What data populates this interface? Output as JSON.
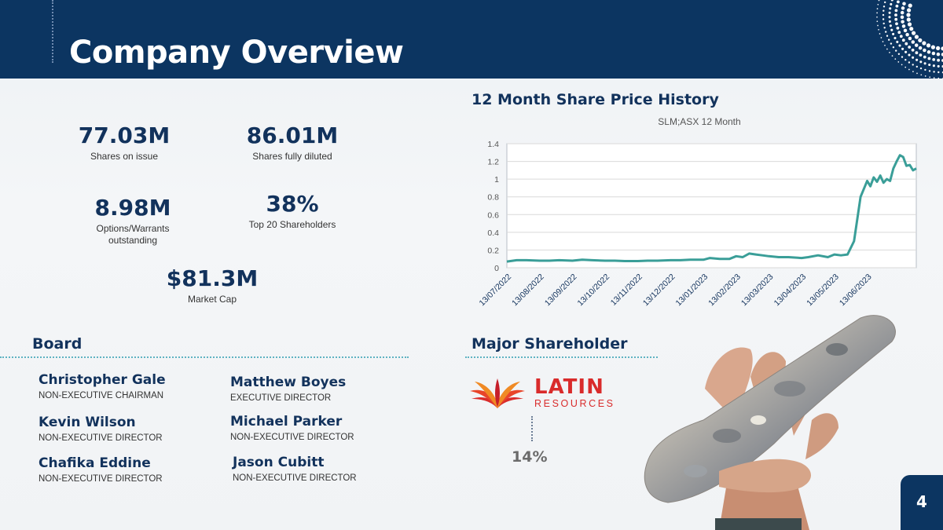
{
  "header": {
    "title": "Company Overview"
  },
  "stats": {
    "shares_on_issue": {
      "value": "77.03M",
      "label": "Shares on issue"
    },
    "shares_fully_diluted": {
      "value": "86.01M",
      "label": "Shares fully diluted"
    },
    "options": {
      "value": "8.98M",
      "label_line1": "Options/Warrants",
      "label_line2": "outstanding"
    },
    "top20": {
      "value": "38%",
      "label": "Top 20 Shareholders"
    },
    "market_cap": {
      "value": "$81.3M",
      "label": "Market Cap"
    }
  },
  "chart_section": {
    "title": "12 Month Share Price History"
  },
  "chart_data": {
    "type": "line",
    "title": "SLM;ASX 12 Month",
    "xlabel": "",
    "ylabel": "",
    "ylim": [
      0,
      1.4
    ],
    "yticks": [
      "0",
      "0.2",
      "0.4",
      "0.6",
      "0.8",
      "1",
      "1.2",
      "1.4"
    ],
    "xtick_labels": [
      "13/07/2022",
      "13/08/2022",
      "13/09/2022",
      "13/10/2022",
      "13/11/2022",
      "13/12/2022",
      "13/01/2023",
      "13/02/2023",
      "13/03/2023",
      "13/04/2023",
      "13/05/2023",
      "13/06/2023"
    ],
    "grid": true,
    "line_color": "#3a9e98",
    "series": [
      {
        "x": [
          0,
          0.3,
          0.6,
          1,
          1.3,
          1.6,
          2,
          2.3,
          2.6,
          3,
          3.3,
          3.6,
          4,
          4.3,
          4.6,
          5,
          5.3,
          5.6,
          6,
          6.2,
          6.5,
          6.8,
          7,
          7.2,
          7.4,
          7.6,
          7.8,
          8,
          8.3,
          8.6,
          9,
          9.2,
          9.5,
          9.8,
          10,
          10.2,
          10.4,
          10.6,
          10.8,
          11,
          11.1,
          11.2,
          11.3,
          11.4,
          11.5,
          11.6,
          11.7,
          11.8,
          11.9,
          12.0,
          12.1,
          12.2,
          12.3,
          12.4,
          12.5
        ],
        "y": [
          0.07,
          0.085,
          0.085,
          0.08,
          0.08,
          0.085,
          0.08,
          0.09,
          0.085,
          0.08,
          0.08,
          0.075,
          0.075,
          0.08,
          0.08,
          0.085,
          0.085,
          0.09,
          0.09,
          0.11,
          0.1,
          0.1,
          0.13,
          0.12,
          0.16,
          0.15,
          0.14,
          0.13,
          0.12,
          0.12,
          0.11,
          0.12,
          0.14,
          0.12,
          0.15,
          0.14,
          0.15,
          0.3,
          0.8,
          0.98,
          0.92,
          1.02,
          0.97,
          1.04,
          0.96,
          1.0,
          0.98,
          1.12,
          1.2,
          1.27,
          1.25,
          1.15,
          1.16,
          1.1,
          1.12
        ]
      }
    ]
  },
  "board": {
    "title": "Board",
    "members": [
      {
        "name": "Christopher Gale",
        "role": "NON-EXECUTIVE CHAIRMAN"
      },
      {
        "name": "Matthew Boyes",
        "role": "EXECUTIVE DIRECTOR"
      },
      {
        "name": "Kevin Wilson",
        "role": "NON-EXECUTIVE DIRECTOR"
      },
      {
        "name": "Michael Parker",
        "role": "NON-EXECUTIVE DIRECTOR"
      },
      {
        "name": "Chafika Eddine",
        "role": "NON-EXECUTIVE DIRECTOR"
      },
      {
        "name": "Jason Cubitt",
        "role": "NON-EXECUTIVE DIRECTOR"
      }
    ]
  },
  "major_shareholder": {
    "title": "Major Shareholder",
    "logo_word1": "LATIN",
    "logo_word2": "RESOURCES",
    "holding": "14%"
  },
  "page": {
    "number": "4"
  }
}
